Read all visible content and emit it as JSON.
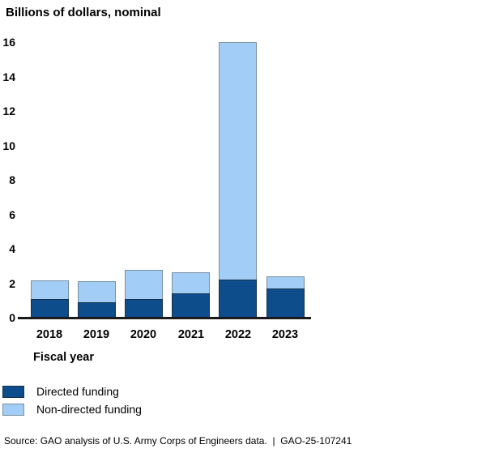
{
  "chart_data": {
    "type": "bar",
    "stacked": true,
    "title": "Billions of dollars, nominal",
    "xlabel": "Fiscal year",
    "ylabel": "Billions of dollars, nominal",
    "categories": [
      "2018",
      "2019",
      "2020",
      "2021",
      "2022",
      "2023"
    ],
    "series": [
      {
        "name": "Directed funding",
        "color": "#0d4d8c",
        "values": [
          1.1,
          0.9,
          1.1,
          1.4,
          2.2,
          1.7
        ]
      },
      {
        "name": "Non-directed funding",
        "color": "#a2cdf6",
        "values": [
          1.1,
          1.2,
          1.7,
          1.2,
          13.8,
          0.7
        ]
      }
    ],
    "ylim": [
      0,
      16
    ],
    "yticks": [
      0,
      2,
      4,
      6,
      8,
      10,
      12,
      14,
      16
    ],
    "grid": false,
    "legend_position": "below-chart-left"
  },
  "colors": {
    "axis_line": "#1a1a1a",
    "bar_border_dark": "#14304a",
    "bar_border_light": "#78909f",
    "text": "#000000"
  },
  "source": "Source: GAO analysis of U.S. Army Corps of Engineers data.  |  GAO-25-107241"
}
